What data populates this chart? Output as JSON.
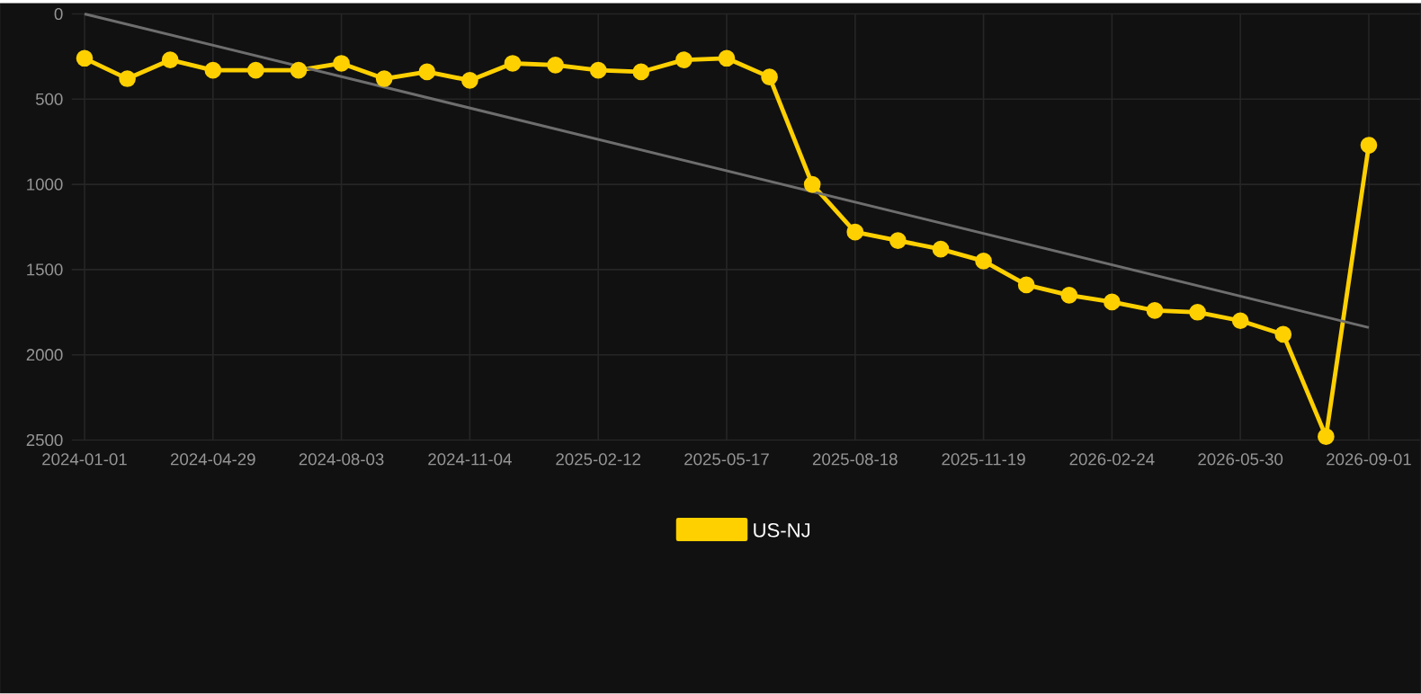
{
  "chart_data": {
    "type": "line",
    "categories": [
      "2024-01-01",
      null,
      null,
      "2024-04-29",
      null,
      null,
      "2024-08-03",
      null,
      null,
      "2024-11-04",
      null,
      null,
      "2025-02-12",
      null,
      null,
      "2025-05-17",
      null,
      null,
      "2025-08-18",
      null,
      null,
      "2025-11-19",
      null,
      null,
      "2026-02-24",
      null,
      null,
      "2026-05-30",
      null,
      null,
      "2026-09-01"
    ],
    "series": [
      {
        "name": "US-NJ",
        "color": "#ffd000",
        "marker": "circle",
        "values": [
          260,
          380,
          270,
          330,
          330,
          330,
          290,
          380,
          340,
          390,
          290,
          300,
          330,
          340,
          270,
          260,
          370,
          1000,
          1280,
          1330,
          1380,
          1450,
          1590,
          1650,
          1690,
          1740,
          1750,
          1800,
          1880,
          2480,
          770
        ]
      },
      {
        "type": "line",
        "color": "#6e6e6e",
        "marker": "none",
        "values": [
          0,
          null,
          null,
          null,
          null,
          null,
          null,
          null,
          null,
          null,
          null,
          null,
          null,
          null,
          null,
          null,
          null,
          null,
          null,
          null,
          null,
          null,
          null,
          null,
          null,
          null,
          null,
          null,
          null,
          null,
          1840
        ]
      }
    ],
    "ylim": [
      2500,
      0
    ],
    "yticks": [
      0,
      500,
      1000,
      1500,
      2000,
      2500
    ],
    "grid": true,
    "legend": "bottom"
  }
}
